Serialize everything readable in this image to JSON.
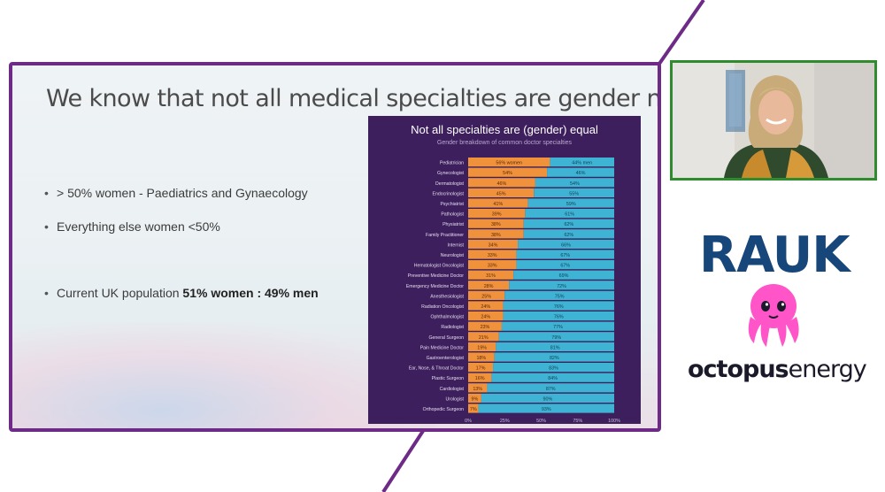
{
  "slide": {
    "title": "We know that not all medical specialties are gender neutral",
    "bullets": [
      {
        "text": "> 50% women - Paediatrics and Gynaecology"
      },
      {
        "text": "Everything else women <50%"
      },
      {
        "prefix": "Current UK population ",
        "bold": "51% women : 49% men"
      }
    ],
    "bullet_glyph": "•"
  },
  "colors": {
    "frame_border": "#6d2a86",
    "women": "#f0923b",
    "men": "#3fb3d4",
    "chart_bg": "#3c1f5c",
    "webcam_border": "#2e8b2e",
    "rauk": "#17467a",
    "octopus_pink": "#ff55c8"
  },
  "chart_data": {
    "type": "bar",
    "orientation": "horizontal-stacked-100",
    "title": "Not all specialties are (gender) equal",
    "subtitle": "Gender breakdown of common doctor specialties",
    "categories": [
      "Pediatrician",
      "Gynecologist",
      "Dermatologist",
      "Endocrinologist",
      "Psychiatrist",
      "Pathologist",
      "Physiatrist",
      "Family Practitioner",
      "Internist",
      "Neurologist",
      "Hematologist Oncologist",
      "Preventive Medicine Doctor",
      "Emergency Medicine Doctor",
      "Anesthesiologist",
      "Radiation Oncologist",
      "Ophthalmologist",
      "Radiologist",
      "General Surgeon",
      "Pain Medicine Doctor",
      "Gastroenterologist",
      "Ear, Nose, & Throat Doctor",
      "Plastic Surgeon",
      "Cardiologist",
      "Urologist",
      "Orthopedic Surgeon"
    ],
    "series": [
      {
        "name": "women",
        "values": [
          56,
          54,
          46,
          45,
          41,
          39,
          38,
          38,
          34,
          33,
          33,
          31,
          28,
          25,
          24,
          24,
          23,
          21,
          19,
          18,
          17,
          16,
          13,
          9,
          7
        ]
      },
      {
        "name": "men",
        "values": [
          44,
          46,
          54,
          55,
          59,
          61,
          62,
          62,
          66,
          67,
          67,
          69,
          72,
          75,
          76,
          76,
          77,
          79,
          81,
          82,
          83,
          84,
          87,
          90,
          93
        ]
      }
    ],
    "first_row_labels": [
      "56% women",
      "44% men"
    ],
    "xticks": [
      "0%",
      "25%",
      "50%",
      "75%",
      "100%"
    ],
    "xlim": [
      0,
      100
    ]
  },
  "webcam": {
    "label": "presenter-video"
  },
  "logos": {
    "rauk": "RAUK",
    "octopus_part1": "octopus",
    "octopus_part2": "energy"
  }
}
